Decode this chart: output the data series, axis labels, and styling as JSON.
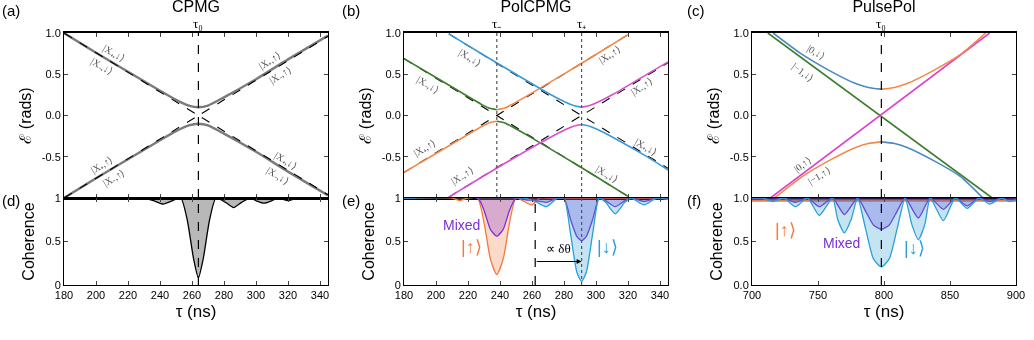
{
  "chart_data": [
    {
      "type": "line",
      "title": "CPMG",
      "ylabel": "ℰ (rads)",
      "xlim": [
        180,
        345
      ],
      "xticks": [
        180,
        200,
        220,
        240,
        260,
        280,
        300,
        320,
        340
      ],
      "ylim": [
        -1,
        1
      ],
      "yticks": [
        {
          "value": 1,
          "label": "1.0"
        },
        0.5,
        {
          "value": 0,
          "label": "0.0"
        },
        -0.5,
        {
          "value": -1,
          "label": null
        }
      ],
      "tick_labels": "y",
      "series": [
        {
          "color": "#7a7a7a",
          "x": [
            180,
            200,
            220,
            240,
            250,
            258,
            264,
            270,
            280,
            300,
            320,
            345
          ],
          "values": [
            1.0,
            0.76,
            0.53,
            0.3,
            0.19,
            0.12,
            0.1,
            0.12,
            0.22,
            0.44,
            0.68,
            0.97
          ]
        },
        {
          "color": "#7a7a7a",
          "x": [
            180,
            200,
            220,
            240,
            250,
            258,
            264,
            270,
            280,
            300,
            320,
            345
          ],
          "values": [
            -1.0,
            -0.76,
            -0.53,
            -0.3,
            -0.19,
            -0.12,
            -0.1,
            -0.12,
            -0.22,
            -0.44,
            -0.68,
            -0.97
          ]
        },
        {
          "color": "#000000",
          "line_style": "dashed",
          "x": [
            180,
            264,
            345
          ],
          "values": [
            1.0,
            0,
            -0.96
          ]
        },
        {
          "color": "#000000",
          "line_style": "dashed",
          "x": [
            180,
            264,
            345
          ],
          "values": [
            -1.0,
            0,
            0.96
          ]
        }
      ],
      "ref_lines": [
        {
          "axis": "x",
          "value": 264,
          "label": "τ₀",
          "line_style": "dashed",
          "color": "#000000"
        }
      ],
      "annotations": [
        "(a)",
        "|X₊,↓⟩",
        "|X₋,↓⟩",
        "|X₊,↑⟩",
        "|X₋,↑⟩",
        "|X₊,↑⟩",
        "|X₋,↑⟩",
        "|X₊,↓⟩",
        "|X₋,↓⟩"
      ]
    },
    {
      "type": "line",
      "title": "PolCPMG",
      "ylabel": "ℰ (rads)",
      "xlim": [
        180,
        345
      ],
      "xticks": [
        180,
        200,
        220,
        240,
        260,
        280,
        300,
        320,
        340
      ],
      "ylim": [
        -1,
        1
      ],
      "yticks": [
        {
          "value": 1,
          "label": "1.0"
        },
        0.5,
        {
          "value": 0,
          "label": "0.0"
        },
        -0.5,
        {
          "value": -1,
          "label": null
        }
      ],
      "tick_labels": "y",
      "series": [
        {
          "color": "#000000",
          "line_style": "dashed",
          "x": [
            180,
            238,
            320
          ],
          "values": [
            0.69,
            0,
            -0.98
          ]
        },
        {
          "color": "#000000",
          "line_style": "dashed",
          "x": [
            180,
            238,
            320
          ],
          "values": [
            -0.69,
            0,
            0.98
          ]
        },
        {
          "color": "#000000",
          "line_style": "dashed",
          "x": [
            208,
            291,
            345
          ],
          "values": [
            0.99,
            0,
            -0.64
          ]
        },
        {
          "color": "#000000",
          "line_style": "dashed",
          "x": [
            208,
            291,
            345
          ],
          "values": [
            -0.99,
            0,
            0.64
          ]
        },
        {
          "name": "|X₋,↓⟩",
          "color": "#3a7d2a",
          "x": [
            180,
            200,
            220,
            228,
            233,
            238
          ],
          "values": [
            0.69,
            0.46,
            0.23,
            0.14,
            0.09,
            0.07
          ]
        },
        {
          "name": "|X₊,↑⟩",
          "color": "#f28a4c",
          "x": [
            238,
            243,
            248,
            258,
            278,
            300,
            320
          ],
          "values": [
            0.07,
            0.09,
            0.14,
            0.25,
            0.48,
            0.74,
            0.98
          ]
        },
        {
          "name": "|X₊,↑⟩",
          "color": "#f28a4c",
          "x": [
            180,
            200,
            220,
            228,
            233,
            238
          ],
          "values": [
            -0.69,
            -0.46,
            -0.23,
            -0.14,
            -0.09,
            -0.07
          ]
        },
        {
          "name": "|X₋,↓⟩",
          "color": "#3a7d2a",
          "x": [
            238,
            243,
            248,
            258,
            278,
            300,
            320
          ],
          "values": [
            -0.07,
            -0.09,
            -0.14,
            -0.25,
            -0.48,
            -0.74,
            -0.98
          ]
        },
        {
          "name": "|X₊,↓⟩",
          "color": "#3a9ad9",
          "x": [
            208,
            230,
            250,
            271,
            281,
            286,
            291
          ],
          "values": [
            0.99,
            0.73,
            0.5,
            0.26,
            0.16,
            0.12,
            0.1
          ]
        },
        {
          "name": "|X₋,↑⟩",
          "color": "#d94fcf",
          "x": [
            291,
            296,
            301,
            311,
            331,
            345
          ],
          "values": [
            0.1,
            0.12,
            0.16,
            0.26,
            0.49,
            0.65
          ]
        },
        {
          "name": "|X₋,↑⟩",
          "color": "#d94fcf",
          "x": [
            208,
            230,
            250,
            271,
            281,
            286,
            291
          ],
          "values": [
            -0.99,
            -0.73,
            -0.5,
            -0.27,
            -0.17,
            -0.13,
            -0.11
          ]
        },
        {
          "name": "|X₊,↓⟩",
          "color": "#3a9ad9",
          "x": [
            291,
            296,
            301,
            311,
            331,
            345
          ],
          "values": [
            -0.11,
            -0.13,
            -0.17,
            -0.27,
            -0.49,
            -0.66
          ]
        }
      ],
      "ref_lines": [
        {
          "axis": "x",
          "value": 238,
          "label": "τ₋",
          "line_style": "dotted",
          "color": "#555555"
        },
        {
          "axis": "x",
          "value": 291,
          "label": "τ₊",
          "line_style": "dotted",
          "color": "#555555"
        }
      ],
      "annotations": [
        "(b)"
      ]
    },
    {
      "type": "line",
      "title": "PulsePol",
      "ylabel": "ℰ (rads)",
      "xlim": [
        700,
        900
      ],
      "xticks": [
        700,
        750,
        800,
        850,
        900
      ],
      "ylim": [
        -1,
        1
      ],
      "yticks": [
        {
          "value": 1,
          "label": "1.0"
        },
        0.5,
        {
          "value": 0,
          "label": "0.0"
        },
        -0.5,
        {
          "value": -1,
          "label": null
        }
      ],
      "tick_labels": "y",
      "series": [
        {
          "name": "|−1,↓⟩",
          "color": "#3a7d2a",
          "x": [
            712,
            882
          ],
          "values": [
            1.0,
            -1.0
          ]
        },
        {
          "name": "|0,↑⟩",
          "color": "#e040c8",
          "x": [
            714,
            880
          ],
          "values": [
            -1.0,
            1.0
          ]
        },
        {
          "name": "|0,↓⟩",
          "color": "#4a8ac0",
          "x": [
            716,
            738,
            758,
            778,
            788,
            798
          ],
          "values": [
            1.0,
            0.74,
            0.55,
            0.39,
            0.34,
            0.32
          ]
        },
        {
          "color": "#f28a4c",
          "x": [
            798,
            808,
            818,
            838,
            858,
            877
          ],
          "values": [
            0.32,
            0.34,
            0.39,
            0.55,
            0.74,
            1.0
          ]
        },
        {
          "name": "|−1,↑⟩",
          "color": "#f28a4c",
          "x": [
            717,
            738,
            758,
            778,
            788,
            798
          ],
          "values": [
            -1.0,
            -0.74,
            -0.55,
            -0.39,
            -0.34,
            -0.32
          ]
        },
        {
          "color": "#4a8ac0",
          "x": [
            798,
            808,
            818,
            838,
            858,
            875
          ],
          "values": [
            -0.32,
            -0.34,
            -0.39,
            -0.55,
            -0.74,
            -1.0
          ]
        }
      ],
      "ref_lines": [
        {
          "axis": "x",
          "value": 798,
          "label": "τ₀",
          "line_style": "dashed",
          "color": "#000000"
        }
      ],
      "annotations": [
        "(c)"
      ]
    },
    {
      "type": "area",
      "ylabel": "Coherence",
      "xlabel": "τ (ns)",
      "xlim": [
        180,
        345
      ],
      "xticks": [
        180,
        200,
        220,
        240,
        260,
        280,
        300,
        320,
        340
      ],
      "ylim": [
        0,
        1
      ],
      "yticks": [
        0,
        0.5,
        1
      ],
      "series": [
        {
          "color": "#000000",
          "x": [
            180,
            230,
            236,
            242,
            248,
            253,
            257,
            261,
            264,
            267,
            271,
            275,
            281,
            286,
            291,
            296,
            300,
            305,
            310,
            314,
            320,
            326,
            345
          ],
          "values": [
            1,
            1,
            0.97,
            0.93,
            0.97,
            1,
            0.75,
            0.3,
            0.08,
            0.3,
            0.75,
            1,
            0.95,
            0.89,
            0.95,
            1,
            0.97,
            0.94,
            0.97,
            1,
            0.97,
            1,
            1
          ]
        }
      ],
      "ref_lines": [
        {
          "axis": "x",
          "value": 264,
          "line_style": "dashed",
          "color": "#000000"
        }
      ],
      "annotations": [
        "(d)"
      ]
    },
    {
      "type": "area",
      "ylabel": "Coherence",
      "xlabel": "τ (ns)",
      "xlim": [
        180,
        345
      ],
      "xticks": [
        180,
        200,
        220,
        240,
        260,
        280,
        300,
        320,
        340
      ],
      "ylim": [
        0,
        1
      ],
      "yticks": [
        0,
        0.5,
        1
      ],
      "series": [
        {
          "name": "|↑⟩",
          "color": "#f47a3c",
          "x": [
            180,
            210,
            215,
            220,
            226,
            230,
            234,
            238,
            242,
            246,
            250,
            255,
            260,
            265,
            270,
            345
          ],
          "values": [
            1,
            1,
            0.97,
            1,
            1,
            0.72,
            0.3,
            0.12,
            0.3,
            0.72,
            1,
            0.96,
            0.92,
            1,
            1,
            1
          ]
        },
        {
          "name": "Mixed",
          "color": "#7b2fd6",
          "x": [
            180,
            226,
            230,
            234,
            238,
            242,
            246,
            250,
            256,
            262,
            269,
            276,
            280,
            284,
            288,
            291,
            294,
            298,
            302,
            306,
            312,
            318,
            322,
            330,
            338,
            345
          ],
          "values": [
            1,
            1,
            0.86,
            0.64,
            0.56,
            0.64,
            0.86,
            1,
            0.98,
            0.97,
            0.95,
            1,
            1,
            0.76,
            0.56,
            0.51,
            0.56,
            0.76,
            1,
            0.97,
            0.9,
            0.97,
            1,
            0.96,
            1,
            1
          ]
        },
        {
          "name": "|↓⟩",
          "color": "#2a9fd8",
          "x": [
            180,
            255,
            262,
            269,
            276,
            280,
            284,
            288,
            291,
            294,
            298,
            302,
            306,
            312,
            318,
            322,
            330,
            338,
            345
          ],
          "values": [
            1,
            1,
            0.96,
            0.9,
            1,
            1,
            0.6,
            0.15,
            0.04,
            0.15,
            0.6,
            1,
            0.95,
            0.82,
            0.95,
            1,
            0.92,
            1,
            0.98
          ]
        }
      ],
      "ref_lines": [
        {
          "axis": "x",
          "value": 262,
          "line_style": "dashed",
          "color": "#000000"
        },
        {
          "axis": "x",
          "value": 291,
          "line_style": "dotted",
          "color": "#555555"
        }
      ],
      "annotations": [
        "(e)",
        "∝ δθ"
      ]
    },
    {
      "type": "area",
      "ylabel": "Coherence",
      "xlabel": "τ (ns)",
      "xlim": [
        700,
        900
      ],
      "xticks": [
        700,
        750,
        800,
        850,
        900
      ],
      "ylim": [
        0,
        1
      ],
      "yticks": [
        {
          "value": 0,
          "label": "0.0"
        },
        0.5,
        {
          "value": 1,
          "label": "1.0"
        }
      ],
      "series": [
        {
          "name": "|↑⟩",
          "type": "line",
          "color": "#f47a3c",
          "x": [
            700,
            900
          ],
          "values": [
            0.97,
            0.97
          ]
        },
        {
          "name": "Mixed",
          "color": "#7b2fd6",
          "x": [
            700,
            716,
            724,
            733,
            742,
            751,
            761,
            770,
            780,
            786,
            792,
            798,
            804,
            810,
            816,
            826,
            835,
            845,
            854,
            863,
            872,
            880,
            889,
            900
          ],
          "values": [
            1,
            0.98,
            1,
            0.95,
            1,
            0.9,
            1,
            0.81,
            1,
            0.85,
            0.69,
            0.64,
            0.69,
            0.85,
            1,
            0.77,
            1,
            0.87,
            1,
            0.91,
            1,
            0.96,
            1,
            1
          ]
        },
        {
          "name": "|↓⟩",
          "color": "#2a9fd8",
          "x": [
            700,
            708,
            716,
            724,
            733,
            742,
            751,
            761,
            765,
            770,
            775,
            780,
            786,
            792,
            798,
            804,
            810,
            816,
            821,
            826,
            831,
            835,
            845,
            854,
            863,
            872,
            880,
            889,
            895,
            900
          ],
          "values": [
            1,
            1,
            0.96,
            1,
            0.9,
            1,
            0.8,
            1,
            0.75,
            0.6,
            0.75,
            1,
            0.65,
            0.3,
            0.21,
            0.3,
            0.65,
            1,
            0.7,
            0.52,
            0.7,
            1,
            0.74,
            1,
            0.88,
            1,
            0.93,
            1,
            0.96,
            0.98
          ]
        }
      ],
      "ref_lines": [
        {
          "axis": "x",
          "value": 798,
          "line_style": "dashed",
          "color": "#000000"
        }
      ],
      "annotations": [
        "(f)"
      ]
    }
  ]
}
